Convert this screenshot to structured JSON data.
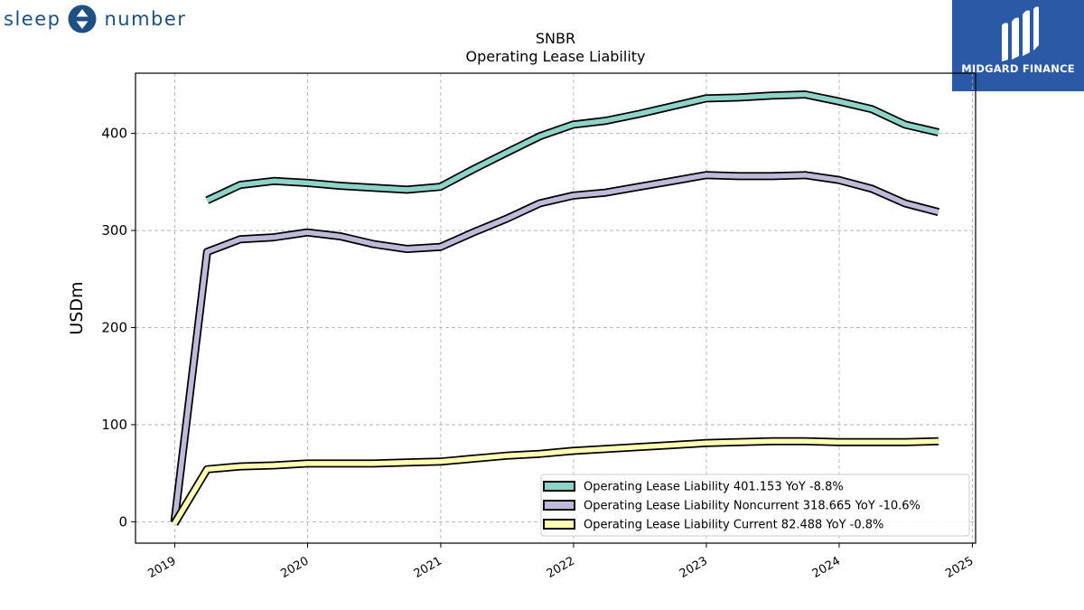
{
  "logos": {
    "left": {
      "word1": "sleep",
      "word2": "number",
      "color": "#1d4f82"
    },
    "right": {
      "text": "MIDGARD FINANCE",
      "bg": "#2b59a6"
    }
  },
  "chart_data": {
    "type": "line",
    "title": "SNBR",
    "subtitle": "Operating Lease Liability",
    "ylabel": "USDm",
    "xlabel": "",
    "xlim": [
      "2018-09-15",
      "2025-01-10"
    ],
    "ylim": [
      -22,
      462
    ],
    "yticks": [
      0,
      100,
      200,
      300,
      400
    ],
    "xticks": [
      "2019",
      "2020",
      "2021",
      "2022",
      "2023",
      "2024",
      "2025"
    ],
    "grid": true,
    "legend_position": "lower-right",
    "series": [
      {
        "name": "Operating Lease Liability  401.153 YoY -8.8%",
        "color": "#8dd3c7",
        "x": [
          "2019-03-31",
          "2019-06-30",
          "2019-09-30",
          "2019-12-31",
          "2020-03-31",
          "2020-06-30",
          "2020-09-30",
          "2020-12-31",
          "2021-03-31",
          "2021-06-30",
          "2021-09-30",
          "2021-12-31",
          "2022-03-31",
          "2022-06-30",
          "2022-09-30",
          "2022-12-31",
          "2023-03-31",
          "2023-06-30",
          "2023-09-30",
          "2023-12-31",
          "2024-03-31",
          "2024-06-30",
          "2024-09-30"
        ],
        "y": [
          331,
          347,
          351,
          349,
          346,
          344,
          342,
          345,
          363,
          380,
          397,
          409,
          413,
          420,
          428,
          436,
          437,
          439,
          440,
          433,
          425,
          409,
          401
        ]
      },
      {
        "name": "Operating Lease Liability Noncurrent  318.665 YoY -10.6%",
        "color": "#bebada",
        "x": [
          "2018-12-31",
          "2019-03-31",
          "2019-06-30",
          "2019-09-30",
          "2019-12-31",
          "2020-03-31",
          "2020-06-30",
          "2020-09-30",
          "2020-12-31",
          "2021-03-31",
          "2021-06-30",
          "2021-09-30",
          "2021-12-31",
          "2022-03-31",
          "2022-06-30",
          "2022-09-30",
          "2022-12-31",
          "2023-03-31",
          "2023-06-30",
          "2023-09-30",
          "2023-12-31",
          "2024-03-31",
          "2024-06-30",
          "2024-09-30"
        ],
        "y": [
          0,
          278,
          291,
          293,
          298,
          294,
          286,
          281,
          283,
          298,
          312,
          328,
          336,
          339,
          345,
          351,
          357,
          356,
          356,
          357,
          352,
          343,
          328,
          319
        ]
      },
      {
        "name": "Operating Lease Liability Current  82.488 YoY -0.8%",
        "color": "#ffffb3",
        "x": [
          "2018-12-31",
          "2019-03-31",
          "2019-06-30",
          "2019-09-30",
          "2019-12-31",
          "2020-03-31",
          "2020-06-30",
          "2020-09-30",
          "2020-12-31",
          "2021-03-31",
          "2021-06-30",
          "2021-09-30",
          "2021-12-31",
          "2022-03-31",
          "2022-06-30",
          "2022-09-30",
          "2022-12-31",
          "2023-03-31",
          "2023-06-30",
          "2023-09-30",
          "2023-12-31",
          "2024-03-31",
          "2024-06-30",
          "2024-09-30"
        ],
        "y": [
          -2,
          54,
          57,
          58,
          60,
          60,
          60,
          61,
          62,
          65,
          68,
          70,
          73,
          75,
          77,
          79,
          81,
          82,
          83,
          83,
          82,
          82,
          82,
          83
        ]
      }
    ]
  }
}
